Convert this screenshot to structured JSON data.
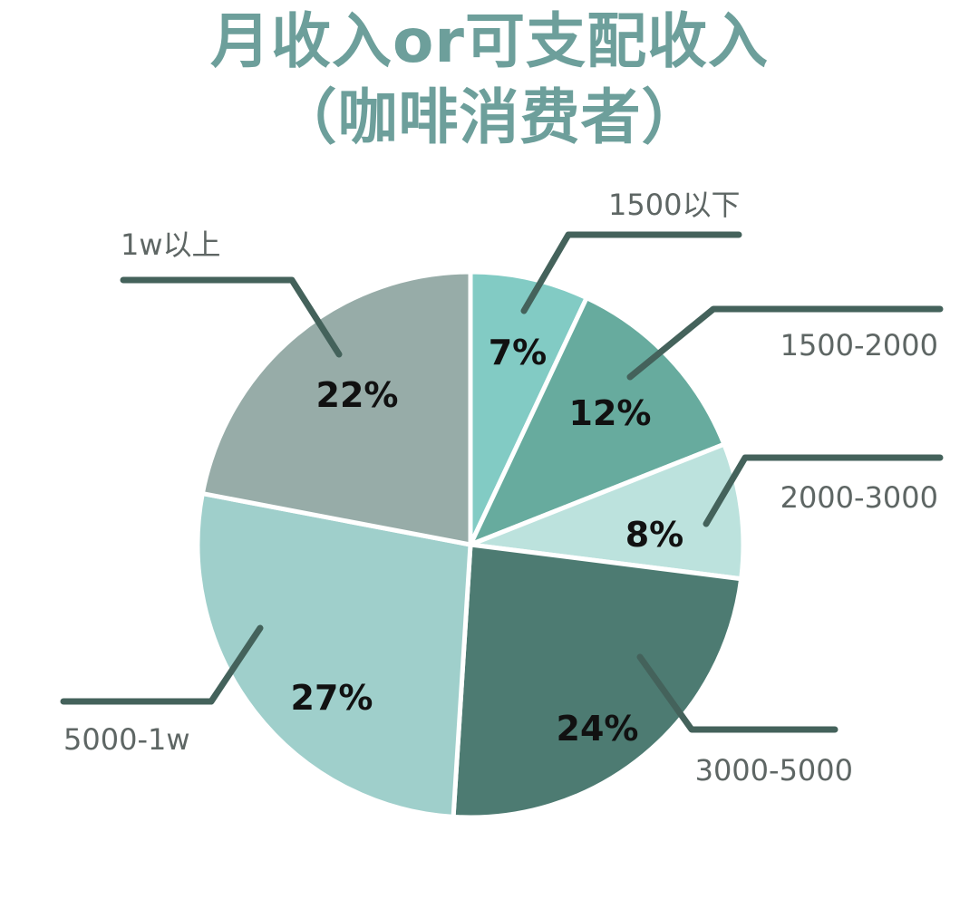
{
  "title_line1": "月收入or可支配收入",
  "title_line2": "（咖啡消费者）",
  "chart_data": {
    "type": "pie",
    "title": "月收入or可支配收入（咖啡消费者）",
    "slices": [
      {
        "label": "1500以下",
        "value": 7,
        "display": "7%",
        "color": "#82cbc4"
      },
      {
        "label": "1500-2000",
        "value": 12,
        "display": "12%",
        "color": "#67ab9e"
      },
      {
        "label": "2000-3000",
        "value": 8,
        "display": "8%",
        "color": "#bce2dd"
      },
      {
        "label": "3000-5000",
        "value": 24,
        "display": "24%",
        "color": "#4d7b72"
      },
      {
        "label": "5000-1w",
        "value": 27,
        "display": "27%",
        "color": "#9fcfcb"
      },
      {
        "label": "1w以上",
        "value": 22,
        "display": "22%",
        "color": "#97aca8"
      }
    ],
    "leader_color": "#44625b",
    "title_color": "#6d9f9b"
  }
}
